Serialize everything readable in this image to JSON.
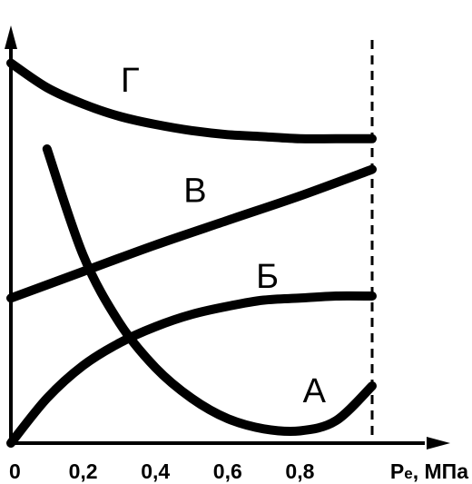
{
  "chart_data": {
    "type": "line",
    "xlabel": "Pe, МПа",
    "xlabel_main": "P",
    "xlabel_sub": "e",
    "xlabel_unit": ", МПа",
    "xlim": [
      0,
      1.2
    ],
    "ylim": [
      0,
      1
    ],
    "y_ticks_shown": false,
    "grid": false,
    "x_ticks": [
      {
        "value": 0,
        "label": "0"
      },
      {
        "value": 0.2,
        "label": "0,2"
      },
      {
        "value": 0.4,
        "label": "0,4"
      },
      {
        "value": 0.6,
        "label": "0,6"
      },
      {
        "value": 0.8,
        "label": "0,8"
      }
    ],
    "reference_line": {
      "x": 1.0,
      "style": "dashed"
    },
    "series": [
      {
        "name": "Г",
        "x": [
          0.0,
          0.1,
          0.2,
          0.3,
          0.4,
          0.5,
          0.6,
          0.7,
          0.8,
          0.9,
          1.0
        ],
        "y": [
          0.93,
          0.87,
          0.83,
          0.8,
          0.78,
          0.765,
          0.755,
          0.75,
          0.745,
          0.745,
          0.745
        ]
      },
      {
        "name": "В",
        "x": [
          0.0,
          0.2,
          0.4,
          0.6,
          0.8,
          1.0
        ],
        "y": [
          0.355,
          0.42,
          0.485,
          0.545,
          0.605,
          0.67
        ]
      },
      {
        "name": "Б",
        "x": [
          0.0,
          0.1,
          0.2,
          0.3,
          0.4,
          0.5,
          0.6,
          0.7,
          0.8,
          0.9,
          1.0
        ],
        "y": [
          0.0,
          0.11,
          0.19,
          0.245,
          0.285,
          0.315,
          0.335,
          0.35,
          0.355,
          0.36,
          0.36
        ]
      },
      {
        "name": "А",
        "x": [
          0.1,
          0.2,
          0.3,
          0.4,
          0.5,
          0.6,
          0.7,
          0.8,
          0.9,
          1.0
        ],
        "y": [
          0.72,
          0.46,
          0.295,
          0.185,
          0.11,
          0.06,
          0.035,
          0.03,
          0.055,
          0.14
        ]
      }
    ],
    "labels": [
      {
        "text": "Г",
        "x": 0.33,
        "y": 0.86
      },
      {
        "text": "В",
        "x": 0.51,
        "y": 0.59
      },
      {
        "text": "Б",
        "x": 0.71,
        "y": 0.38
      },
      {
        "text": "А",
        "x": 0.84,
        "y": 0.1
      }
    ]
  }
}
